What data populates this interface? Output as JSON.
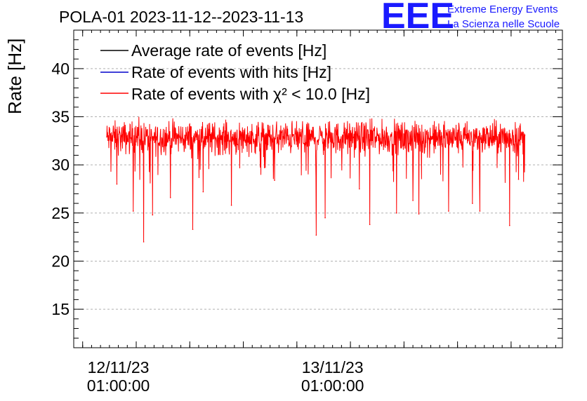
{
  "chart_data": {
    "type": "line",
    "title": "POLA-01 2023-11-12--2023-11-13",
    "xlabel": "",
    "ylabel": "Rate [Hz]",
    "ylim": [
      11,
      44
    ],
    "yticks": [
      15,
      20,
      25,
      30,
      35,
      40
    ],
    "x_axis": "time",
    "xlim": [
      "2023-11-11 20:00",
      "2023-11-14 02:45"
    ],
    "xtick_labels": [
      {
        "at": "2023-11-12 01:00:00",
        "date": "12/11/23",
        "time": "01:00:00"
      },
      {
        "at": "2023-11-13 01:00:00",
        "date": "13/11/23",
        "time": "01:00:00"
      }
    ],
    "grid": true,
    "legend_position": "top-left",
    "series": [
      {
        "name": "Average rate of events [Hz]",
        "color": "#000000",
        "values_description": ""
      },
      {
        "name": "Rate of events with hits [Hz]",
        "color": "#0000cc"
      },
      {
        "name": "Rate of events with χ² < 10.0 [Hz]",
        "color": "#ff0000"
      }
    ],
    "data_start": "2023-11-11 23:40",
    "data_end": "2023-11-13 22:35",
    "baseline_rate": 32.8,
    "noise_band": [
      31.0,
      34.6
    ],
    "dips": [
      {
        "t": "2023-11-12 00:50",
        "y": 28.0
      },
      {
        "t": "2023-11-12 02:40",
        "y": 25.2
      },
      {
        "t": "2023-11-12 03:50",
        "y": 22.0
      },
      {
        "t": "2023-11-12 04:50",
        "y": 24.8
      },
      {
        "t": "2023-11-12 06:50",
        "y": 26.6
      },
      {
        "t": "2023-11-12 09:20",
        "y": 23.3
      },
      {
        "t": "2023-11-12 10:30",
        "y": 27.2
      },
      {
        "t": "2023-11-12 13:40",
        "y": 25.8
      },
      {
        "t": "2023-11-12 18:30",
        "y": 28.4
      },
      {
        "t": "2023-11-12 23:10",
        "y": 22.7
      },
      {
        "t": "2023-11-13 00:10",
        "y": 24.5
      },
      {
        "t": "2023-11-13 04:00",
        "y": 27.5
      },
      {
        "t": "2023-11-13 05:10",
        "y": 23.8
      },
      {
        "t": "2023-11-13 08:10",
        "y": 25.0
      },
      {
        "t": "2023-11-13 10:00",
        "y": 26.3
      },
      {
        "t": "2023-11-13 10:40",
        "y": 24.9
      },
      {
        "t": "2023-11-13 14:00",
        "y": 25.2
      },
      {
        "t": "2023-11-13 16:40",
        "y": 26.0
      },
      {
        "t": "2023-11-13 17:30",
        "y": 25.2
      },
      {
        "t": "2023-11-13 20:50",
        "y": 23.7
      },
      {
        "t": "2023-11-13 21:50",
        "y": 28.5
      }
    ]
  },
  "logo": {
    "mark": "EEE",
    "line1": "Extreme Energy Events",
    "line2": "La Scienza nelle Scuole",
    "color": "#1a1aff"
  }
}
